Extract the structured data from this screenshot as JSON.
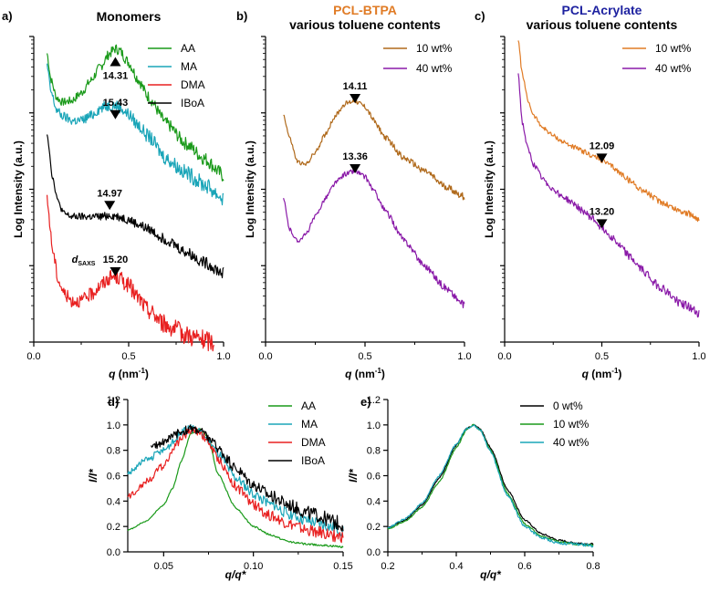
{
  "chart_data": [
    {
      "panel_label": "a)",
      "type": "line",
      "title": "Monomers",
      "xlabel_var": "q",
      "xlabel_unit": " (nm",
      "xlabel_exp": "-1",
      "xlabel_close": ")",
      "ylabel": "Log Intensity (a.u.)",
      "xlim": [
        0,
        1.0
      ],
      "xticks": [
        "0.0",
        "0.5",
        "1.0"
      ],
      "ylim": [
        0,
        1
      ],
      "yscale": "log (arbitrary, stacked curves)",
      "legend": "top-right",
      "series": [
        {
          "name": "AA",
          "color": "#1a9a1a",
          "noise": 0.012,
          "x": [
            0.07,
            0.09,
            0.12,
            0.15,
            0.2,
            0.25,
            0.3,
            0.35,
            0.4,
            0.43,
            0.45,
            0.5,
            0.55,
            0.6,
            0.7,
            0.8,
            0.9,
            1.0
          ],
          "y": [
            0.945,
            0.86,
            0.8,
            0.785,
            0.79,
            0.815,
            0.855,
            0.9,
            0.945,
            0.96,
            0.955,
            0.915,
            0.86,
            0.805,
            0.715,
            0.65,
            0.6,
            0.545
          ]
        },
        {
          "name": "MA",
          "color": "#1aa5b8",
          "noise": 0.014,
          "x": [
            0.07,
            0.09,
            0.12,
            0.15,
            0.2,
            0.25,
            0.3,
            0.35,
            0.4,
            0.43,
            0.45,
            0.5,
            0.55,
            0.6,
            0.7,
            0.8,
            0.9,
            1.0
          ],
          "y": [
            0.905,
            0.82,
            0.76,
            0.74,
            0.725,
            0.725,
            0.74,
            0.765,
            0.775,
            0.775,
            0.77,
            0.745,
            0.71,
            0.675,
            0.6,
            0.555,
            0.515,
            0.47
          ]
        },
        {
          "name": "DMA",
          "color": "#e82020",
          "noise": 0.018,
          "x": [
            0.07,
            0.1,
            0.13,
            0.16,
            0.2,
            0.25,
            0.3,
            0.35,
            0.4,
            0.43,
            0.45,
            0.5,
            0.55,
            0.6,
            0.7,
            0.8,
            0.9,
            0.95
          ],
          "y": [
            0.465,
            0.3,
            0.2,
            0.16,
            0.135,
            0.135,
            0.155,
            0.185,
            0.21,
            0.215,
            0.21,
            0.185,
            0.145,
            0.105,
            0.055,
            0.025,
            0.005,
            0.0
          ]
        },
        {
          "name": "IBoA",
          "color": "#000000",
          "noise": 0.01,
          "x": [
            0.07,
            0.1,
            0.13,
            0.16,
            0.2,
            0.25,
            0.3,
            0.35,
            0.4,
            0.45,
            0.5,
            0.55,
            0.6,
            0.7,
            0.8,
            0.9,
            1.0
          ],
          "y": [
            0.685,
            0.535,
            0.455,
            0.42,
            0.41,
            0.41,
            0.41,
            0.41,
            0.415,
            0.41,
            0.4,
            0.385,
            0.37,
            0.335,
            0.295,
            0.26,
            0.225
          ]
        }
      ],
      "peaks": [
        {
          "label": "14.31",
          "x": 0.43,
          "y": 0.915,
          "dir": "up",
          "prefix": ""
        },
        {
          "label": "15.43",
          "x": 0.43,
          "y": 0.747,
          "dir": "down",
          "prefix": ""
        },
        {
          "label": "14.97",
          "x": 0.4,
          "y": 0.45,
          "dir": "down",
          "prefix": ""
        },
        {
          "label": "15.20",
          "x": 0.43,
          "y": 0.233,
          "dir": "down",
          "prefix": "d",
          "prefix_sub": "SAXS"
        }
      ]
    },
    {
      "panel_label": "b)",
      "type": "line",
      "title": "PCL-BTPA",
      "title_color": "#e07b25",
      "subtitle": "various toluene contents",
      "xlabel_var": "q",
      "xlabel_unit": " (nm",
      "xlabel_exp": "-1",
      "xlabel_close": ")",
      "ylabel": "Log Intensity (a.u.)",
      "xlim": [
        0,
        1.0
      ],
      "xticks": [
        "0.0",
        "0.5",
        "1.0"
      ],
      "ylim": [
        0,
        1
      ],
      "yscale": "log (arbitrary, stacked curves)",
      "legend": "top-right",
      "series": [
        {
          "name": "10 wt%",
          "color": "#b06a1c",
          "noise": 0.006,
          "x": [
            0.09,
            0.12,
            0.16,
            0.2,
            0.25,
            0.3,
            0.35,
            0.4,
            0.45,
            0.5,
            0.55,
            0.6,
            0.7,
            0.8,
            0.9,
            1.0
          ],
          "y": [
            0.745,
            0.67,
            0.59,
            0.58,
            0.62,
            0.68,
            0.74,
            0.78,
            0.79,
            0.77,
            0.72,
            0.67,
            0.6,
            0.56,
            0.51,
            0.475
          ]
        },
        {
          "name": "40 wt%",
          "color": "#8a1aa8",
          "noise": 0.006,
          "x": [
            0.09,
            0.12,
            0.16,
            0.2,
            0.25,
            0.3,
            0.35,
            0.4,
            0.45,
            0.5,
            0.55,
            0.6,
            0.7,
            0.8,
            0.9,
            1.0
          ],
          "y": [
            0.47,
            0.37,
            0.33,
            0.35,
            0.41,
            0.47,
            0.52,
            0.55,
            0.56,
            0.54,
            0.49,
            0.43,
            0.33,
            0.25,
            0.18,
            0.12
          ]
        }
      ],
      "peaks": [
        {
          "label": "14.11",
          "x": 0.45,
          "y": 0.8,
          "dir": "down",
          "prefix": ""
        },
        {
          "label": "13.36",
          "x": 0.45,
          "y": 0.57,
          "dir": "down",
          "prefix": ""
        }
      ]
    },
    {
      "panel_label": "c)",
      "type": "line",
      "title": "PCL-Acrylate",
      "title_color": "#1e22a0",
      "subtitle": "various toluene contents",
      "xlabel_var": "q",
      "xlabel_unit": " (nm",
      "xlabel_exp": "-1",
      "xlabel_close": ")",
      "ylabel": "Log Intensity (a.u.)",
      "xlim": [
        0,
        1.0
      ],
      "xticks": [
        "0.0",
        "0.5",
        "1.0"
      ],
      "ylim": [
        0,
        1
      ],
      "yscale": "log (arbitrary, stacked curves)",
      "legend": "top-right",
      "series": [
        {
          "name": "10 wt%",
          "color": "#e07b25",
          "noise": 0.006,
          "x": [
            0.07,
            0.09,
            0.12,
            0.15,
            0.2,
            0.25,
            0.3,
            0.35,
            0.4,
            0.45,
            0.5,
            0.55,
            0.6,
            0.65,
            0.7,
            0.8,
            0.9,
            1.0
          ],
          "y": [
            0.99,
            0.88,
            0.79,
            0.74,
            0.7,
            0.675,
            0.655,
            0.64,
            0.625,
            0.61,
            0.595,
            0.575,
            0.55,
            0.525,
            0.5,
            0.46,
            0.43,
            0.405
          ]
        },
        {
          "name": "40 wt%",
          "color": "#8a1aa8",
          "noise": 0.008,
          "x": [
            0.07,
            0.09,
            0.12,
            0.15,
            0.2,
            0.25,
            0.3,
            0.35,
            0.4,
            0.45,
            0.5,
            0.55,
            0.6,
            0.65,
            0.7,
            0.8,
            0.9,
            1.0
          ],
          "y": [
            0.88,
            0.72,
            0.63,
            0.58,
            0.53,
            0.5,
            0.475,
            0.455,
            0.43,
            0.405,
            0.375,
            0.345,
            0.31,
            0.275,
            0.24,
            0.18,
            0.13,
            0.095
          ]
        }
      ],
      "peaks": [
        {
          "label": "12.09",
          "x": 0.5,
          "y": 0.605,
          "dir": "down",
          "prefix": ""
        },
        {
          "label": "13.20",
          "x": 0.5,
          "y": 0.39,
          "dir": "down",
          "prefix": ""
        }
      ]
    },
    {
      "panel_label": "d)",
      "type": "line",
      "xlabel": "q/q*",
      "ylabel": "I/I*",
      "xlim": [
        0.03,
        0.15
      ],
      "ylim": [
        0,
        1.2
      ],
      "xticks": [
        "0.05",
        "0.10",
        "0.15"
      ],
      "yticks": [
        "0.0",
        "0.2",
        "0.4",
        "0.6",
        "0.8",
        "1.0",
        "1.2"
      ],
      "legend": "top-right",
      "series": [
        {
          "name": "AA",
          "color": "#1a9a1a",
          "noise": 0.004,
          "x": [
            0.03,
            0.04,
            0.05,
            0.055,
            0.06,
            0.065,
            0.07,
            0.075,
            0.08,
            0.09,
            0.1,
            0.11,
            0.12,
            0.13,
            0.15
          ],
          "y": [
            0.17,
            0.24,
            0.37,
            0.5,
            0.72,
            0.93,
            0.97,
            0.9,
            0.62,
            0.35,
            0.2,
            0.13,
            0.08,
            0.06,
            0.04
          ]
        },
        {
          "name": "MA",
          "color": "#1aa5b8",
          "noise": 0.025,
          "x": [
            0.03,
            0.04,
            0.05,
            0.055,
            0.06,
            0.065,
            0.07,
            0.075,
            0.08,
            0.09,
            0.1,
            0.11,
            0.12,
            0.13,
            0.15
          ],
          "y": [
            0.62,
            0.72,
            0.8,
            0.86,
            0.94,
            0.97,
            0.95,
            0.88,
            0.78,
            0.58,
            0.46,
            0.37,
            0.3,
            0.24,
            0.17
          ]
        },
        {
          "name": "DMA",
          "color": "#e82020",
          "noise": 0.025,
          "x": [
            0.03,
            0.04,
            0.05,
            0.055,
            0.06,
            0.065,
            0.07,
            0.075,
            0.08,
            0.09,
            0.1,
            0.11,
            0.12,
            0.13,
            0.15
          ],
          "y": [
            0.43,
            0.55,
            0.68,
            0.8,
            0.9,
            0.96,
            0.95,
            0.86,
            0.74,
            0.52,
            0.37,
            0.28,
            0.22,
            0.17,
            0.12
          ]
        },
        {
          "name": "IBoA",
          "color": "#000000",
          "noise": 0.03,
          "x": [
            0.043,
            0.05,
            0.055,
            0.06,
            0.065,
            0.07,
            0.075,
            0.08,
            0.09,
            0.1,
            0.11,
            0.12,
            0.13,
            0.15
          ],
          "y": [
            0.82,
            0.87,
            0.91,
            0.95,
            0.97,
            0.96,
            0.9,
            0.82,
            0.66,
            0.53,
            0.44,
            0.37,
            0.31,
            0.22
          ]
        }
      ]
    },
    {
      "panel_label": "e)",
      "type": "line",
      "xlabel": "q/q*",
      "ylabel": "I/I*",
      "xlim": [
        0.2,
        0.8
      ],
      "ylim": [
        0,
        1.2
      ],
      "xticks": [
        "0.2",
        "0.4",
        "0.6",
        "0.8"
      ],
      "yticks": [
        "0.0",
        "0.2",
        "0.4",
        "0.6",
        "0.8",
        "1.0",
        "1.2"
      ],
      "legend": "top-right",
      "series": [
        {
          "name": "0 wt%",
          "color": "#000000",
          "noise": 0.004,
          "x": [
            0.2,
            0.25,
            0.3,
            0.35,
            0.4,
            0.43,
            0.45,
            0.47,
            0.5,
            0.55,
            0.6,
            0.65,
            0.7,
            0.75,
            0.8
          ],
          "y": [
            0.19,
            0.25,
            0.37,
            0.58,
            0.84,
            0.97,
            1.0,
            0.97,
            0.82,
            0.49,
            0.25,
            0.14,
            0.09,
            0.07,
            0.06
          ]
        },
        {
          "name": "10 wt%",
          "color": "#1a9a1a",
          "noise": 0.004,
          "x": [
            0.2,
            0.25,
            0.3,
            0.35,
            0.4,
            0.43,
            0.45,
            0.47,
            0.5,
            0.55,
            0.6,
            0.65,
            0.7,
            0.75,
            0.8
          ],
          "y": [
            0.18,
            0.24,
            0.35,
            0.55,
            0.82,
            0.96,
            1.0,
            0.96,
            0.8,
            0.46,
            0.22,
            0.12,
            0.08,
            0.06,
            0.05
          ]
        },
        {
          "name": "40 wt%",
          "color": "#1aa5b8",
          "noise": 0.006,
          "x": [
            0.2,
            0.25,
            0.3,
            0.35,
            0.4,
            0.43,
            0.45,
            0.47,
            0.5,
            0.55,
            0.6,
            0.65,
            0.7,
            0.75,
            0.8
          ],
          "y": [
            0.19,
            0.26,
            0.38,
            0.6,
            0.85,
            0.97,
            1.0,
            0.96,
            0.79,
            0.44,
            0.2,
            0.11,
            0.07,
            0.06,
            0.05
          ]
        }
      ]
    }
  ]
}
